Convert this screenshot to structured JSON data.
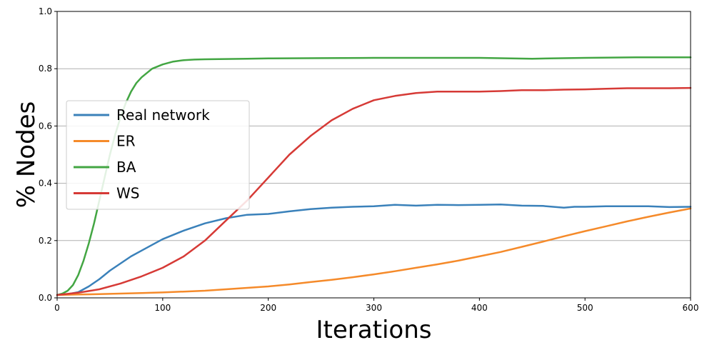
{
  "chart_data": {
    "type": "line",
    "title": "",
    "xlabel": "Iterations",
    "ylabel": "% Nodes",
    "xlim": [
      0,
      600
    ],
    "ylim": [
      0,
      1.0
    ],
    "xticks": [
      "0",
      "100",
      "200",
      "300",
      "400",
      "500",
      "600"
    ],
    "yticks": [
      "0.0",
      "0.2",
      "0.4",
      "0.6",
      "0.8",
      "1.0"
    ],
    "grid": "horizontal",
    "legend_position": "center-left",
    "series": [
      {
        "name": "Real network",
        "color": "#3a81ba",
        "x": [
          0,
          10,
          20,
          30,
          40,
          50,
          60,
          70,
          80,
          90,
          100,
          120,
          140,
          160,
          180,
          200,
          220,
          240,
          260,
          280,
          300,
          320,
          340,
          360,
          380,
          400,
          420,
          440,
          460,
          480,
          490,
          500,
          520,
          540,
          560,
          580,
          600
        ],
        "y": [
          0.01,
          0.013,
          0.02,
          0.04,
          0.065,
          0.095,
          0.12,
          0.145,
          0.165,
          0.185,
          0.205,
          0.235,
          0.26,
          0.278,
          0.29,
          0.293,
          0.302,
          0.31,
          0.315,
          0.318,
          0.32,
          0.325,
          0.322,
          0.325,
          0.324,
          0.325,
          0.326,
          0.322,
          0.321,
          0.315,
          0.318,
          0.318,
          0.32,
          0.32,
          0.32,
          0.317,
          0.318
        ]
      },
      {
        "name": "ER",
        "color": "#f58a2a",
        "x": [
          0,
          20,
          40,
          60,
          80,
          100,
          120,
          140,
          160,
          180,
          200,
          220,
          240,
          260,
          280,
          300,
          320,
          340,
          360,
          380,
          400,
          420,
          440,
          460,
          480,
          500,
          520,
          540,
          560,
          580,
          600
        ],
        "y": [
          0.01,
          0.012,
          0.013,
          0.015,
          0.017,
          0.019,
          0.022,
          0.025,
          0.03,
          0.035,
          0.04,
          0.047,
          0.055,
          0.063,
          0.072,
          0.082,
          0.093,
          0.105,
          0.117,
          0.13,
          0.145,
          0.16,
          0.178,
          0.196,
          0.215,
          0.233,
          0.25,
          0.267,
          0.283,
          0.298,
          0.312
        ]
      },
      {
        "name": "BA",
        "color": "#43a643",
        "x": [
          0,
          5,
          10,
          15,
          20,
          25,
          30,
          35,
          40,
          45,
          50,
          55,
          60,
          65,
          70,
          75,
          80,
          90,
          100,
          110,
          120,
          130,
          140,
          160,
          180,
          200,
          250,
          300,
          350,
          400,
          450,
          500,
          550,
          600
        ],
        "y": [
          0.01,
          0.015,
          0.025,
          0.045,
          0.08,
          0.13,
          0.19,
          0.26,
          0.34,
          0.42,
          0.5,
          0.57,
          0.63,
          0.68,
          0.72,
          0.75,
          0.77,
          0.8,
          0.815,
          0.825,
          0.83,
          0.832,
          0.833,
          0.834,
          0.835,
          0.836,
          0.837,
          0.838,
          0.838,
          0.838,
          0.835,
          0.838,
          0.84,
          0.84
        ]
      },
      {
        "name": "WS",
        "color": "#d63a36",
        "x": [
          0,
          20,
          40,
          60,
          80,
          100,
          120,
          140,
          160,
          180,
          200,
          220,
          240,
          260,
          280,
          300,
          320,
          340,
          360,
          380,
          400,
          420,
          440,
          460,
          480,
          500,
          520,
          540,
          560,
          580,
          600
        ],
        "y": [
          0.01,
          0.018,
          0.03,
          0.05,
          0.075,
          0.105,
          0.145,
          0.2,
          0.27,
          0.34,
          0.42,
          0.5,
          0.565,
          0.62,
          0.66,
          0.69,
          0.705,
          0.715,
          0.72,
          0.72,
          0.72,
          0.722,
          0.725,
          0.725,
          0.727,
          0.728,
          0.73,
          0.732,
          0.732,
          0.732,
          0.733
        ]
      }
    ]
  }
}
